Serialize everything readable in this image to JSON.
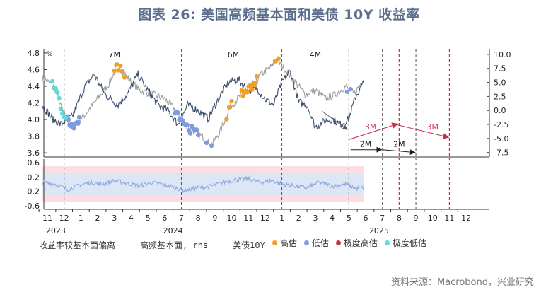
{
  "title": "图表 26: 美国高频基本面和美债 10Y 收益率",
  "source": "资料来源：Macrobond，兴业研究",
  "colors": {
    "yield": "#9e9e9e",
    "fundamental": "#3a4d6e",
    "deviation": "#8fa8e0",
    "high": "#f0a02a",
    "low": "#7f9be0",
    "extreme_high": "#c93048",
    "extreme_low": "#5fd9db",
    "red_dash": "#c93048",
    "grey_dash": "#555555",
    "band_outer": "#fbdde2",
    "band_inner": "#dce6f4"
  },
  "legend": [
    {
      "key": "deviation",
      "label": "收益率较基本面偏离",
      "type": "line"
    },
    {
      "key": "fundamental",
      "label": "高频基本面, rhs",
      "type": "line"
    },
    {
      "key": "yield",
      "label": "美债10Y",
      "type": "line"
    },
    {
      "key": "high",
      "label": "高估",
      "type": "dot"
    },
    {
      "key": "low",
      "label": "低估",
      "type": "dot"
    },
    {
      "key": "extreme_high",
      "label": "极度高估",
      "type": "dot"
    },
    {
      "key": "extreme_low",
      "label": "极度低估",
      "type": "dot"
    }
  ],
  "chart_data": {
    "type": "line",
    "top_panel": {
      "left_unit": "%",
      "left_ticks": [
        "4.8",
        "4.6",
        "4.4",
        "4.2",
        "4.0",
        "3.8",
        "3.6"
      ],
      "left_range": [
        3.55,
        4.85
      ],
      "right_ticks": [
        "10.0",
        "7.5",
        "5.0",
        "2.5",
        "0.0",
        "-2.5",
        "-5.0",
        "-7.5"
      ],
      "right_range": [
        -8.3,
        11.0
      ]
    },
    "bottom_panel": {
      "ticks": [
        "0.6",
        "0.2",
        "-0.2",
        "-0.6"
      ],
      "range": [
        -0.7,
        0.7
      ]
    },
    "x_month_labels": [
      "11",
      "12",
      "1",
      "2",
      "3",
      "4",
      "5",
      "6",
      "7",
      "8",
      "9",
      "10",
      "11",
      "12",
      "1",
      "2",
      "3",
      "4",
      "5",
      "6",
      "7",
      "8",
      "9",
      "10",
      "11",
      "12"
    ],
    "x_year_labels": [
      {
        "label": "2023",
        "month_index": 0.5
      },
      {
        "label": "2024",
        "month_index": 7.5
      },
      {
        "label": "2025",
        "month_index": 19.8
      }
    ],
    "period_labels": [
      {
        "label": "7M",
        "month": 4.0
      },
      {
        "label": "6M",
        "month": 11.1
      },
      {
        "label": "4M",
        "month": 16.0
      },
      {
        "label": "3M",
        "month": 19.3,
        "color": "red"
      },
      {
        "label": "2M",
        "month": 19.0,
        "color": "black"
      },
      {
        "label": "2M",
        "month": 21.0,
        "color": "black"
      },
      {
        "label": "3M",
        "month": 23.0,
        "color": "red"
      }
    ],
    "grey_dashed_months": [
      1.0,
      8.0,
      14.0,
      18.0,
      20.0,
      22.0
    ],
    "red_dashed_months": [
      21.0,
      24.0
    ]
  }
}
